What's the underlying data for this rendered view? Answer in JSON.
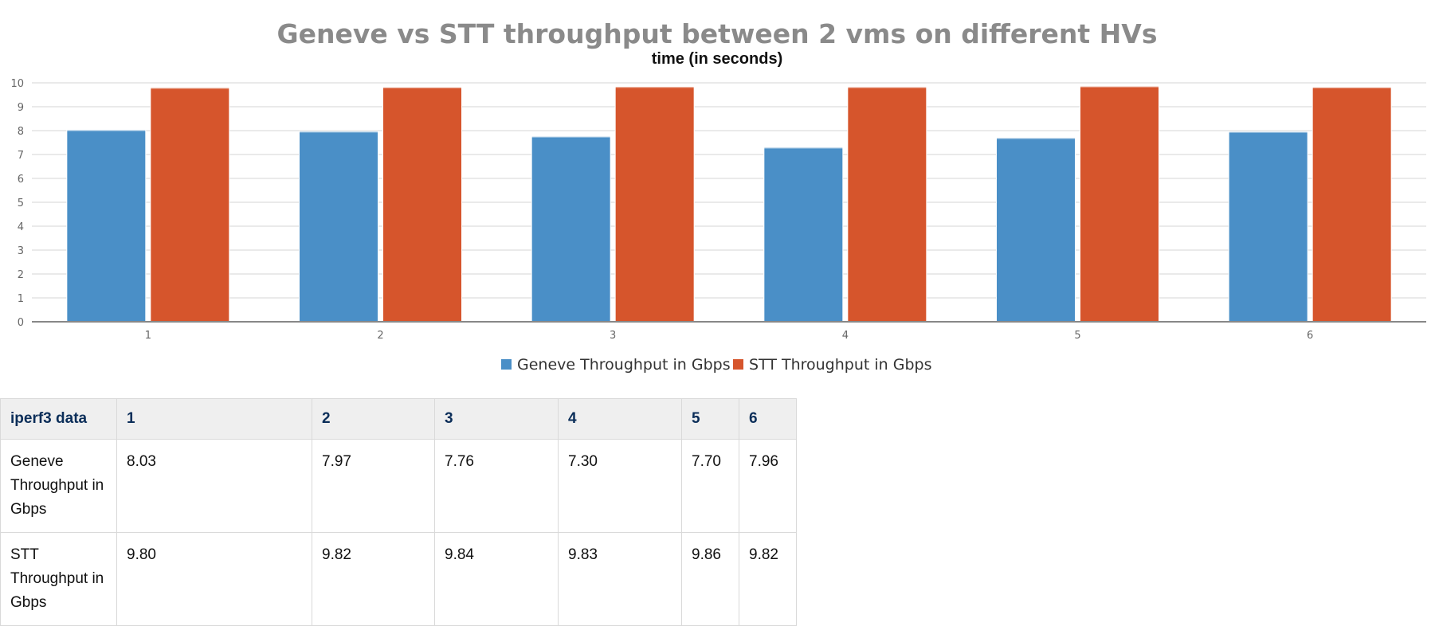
{
  "chart_data": {
    "type": "bar",
    "title": "Geneve vs STT throughput between 2 vms on different HVs",
    "subtitle": "time (in seconds)",
    "categories": [
      "1",
      "2",
      "3",
      "4",
      "5",
      "6"
    ],
    "series": [
      {
        "name": "Geneve Throughput in Gbps",
        "values": [
          8.03,
          7.97,
          7.76,
          7.3,
          7.7,
          7.96
        ],
        "color": "#4a8fc7"
      },
      {
        "name": "STT Throughput in Gbps",
        "values": [
          9.8,
          9.82,
          9.84,
          9.83,
          9.86,
          9.82
        ],
        "color": "#d6552c"
      }
    ],
    "ylim": [
      0,
      10
    ],
    "yticks": [
      "0",
      "1",
      "2",
      "3",
      "4",
      "5",
      "6",
      "7",
      "8",
      "9",
      "10"
    ],
    "grid": true,
    "legend": "bottom-center"
  },
  "table": {
    "header": [
      "iperf3 data",
      "1",
      "2",
      "3",
      "4",
      "5",
      "6"
    ],
    "rows": [
      {
        "label": "Geneve Throughput in Gbps",
        "values": [
          "8.03",
          "7.97",
          "7.76",
          "7.30",
          "7.70",
          "7.96"
        ]
      },
      {
        "label": "STT Throughput in Gbps",
        "values": [
          "9.80",
          "9.82",
          "9.84",
          "9.83",
          "9.86",
          "9.82"
        ]
      }
    ]
  }
}
